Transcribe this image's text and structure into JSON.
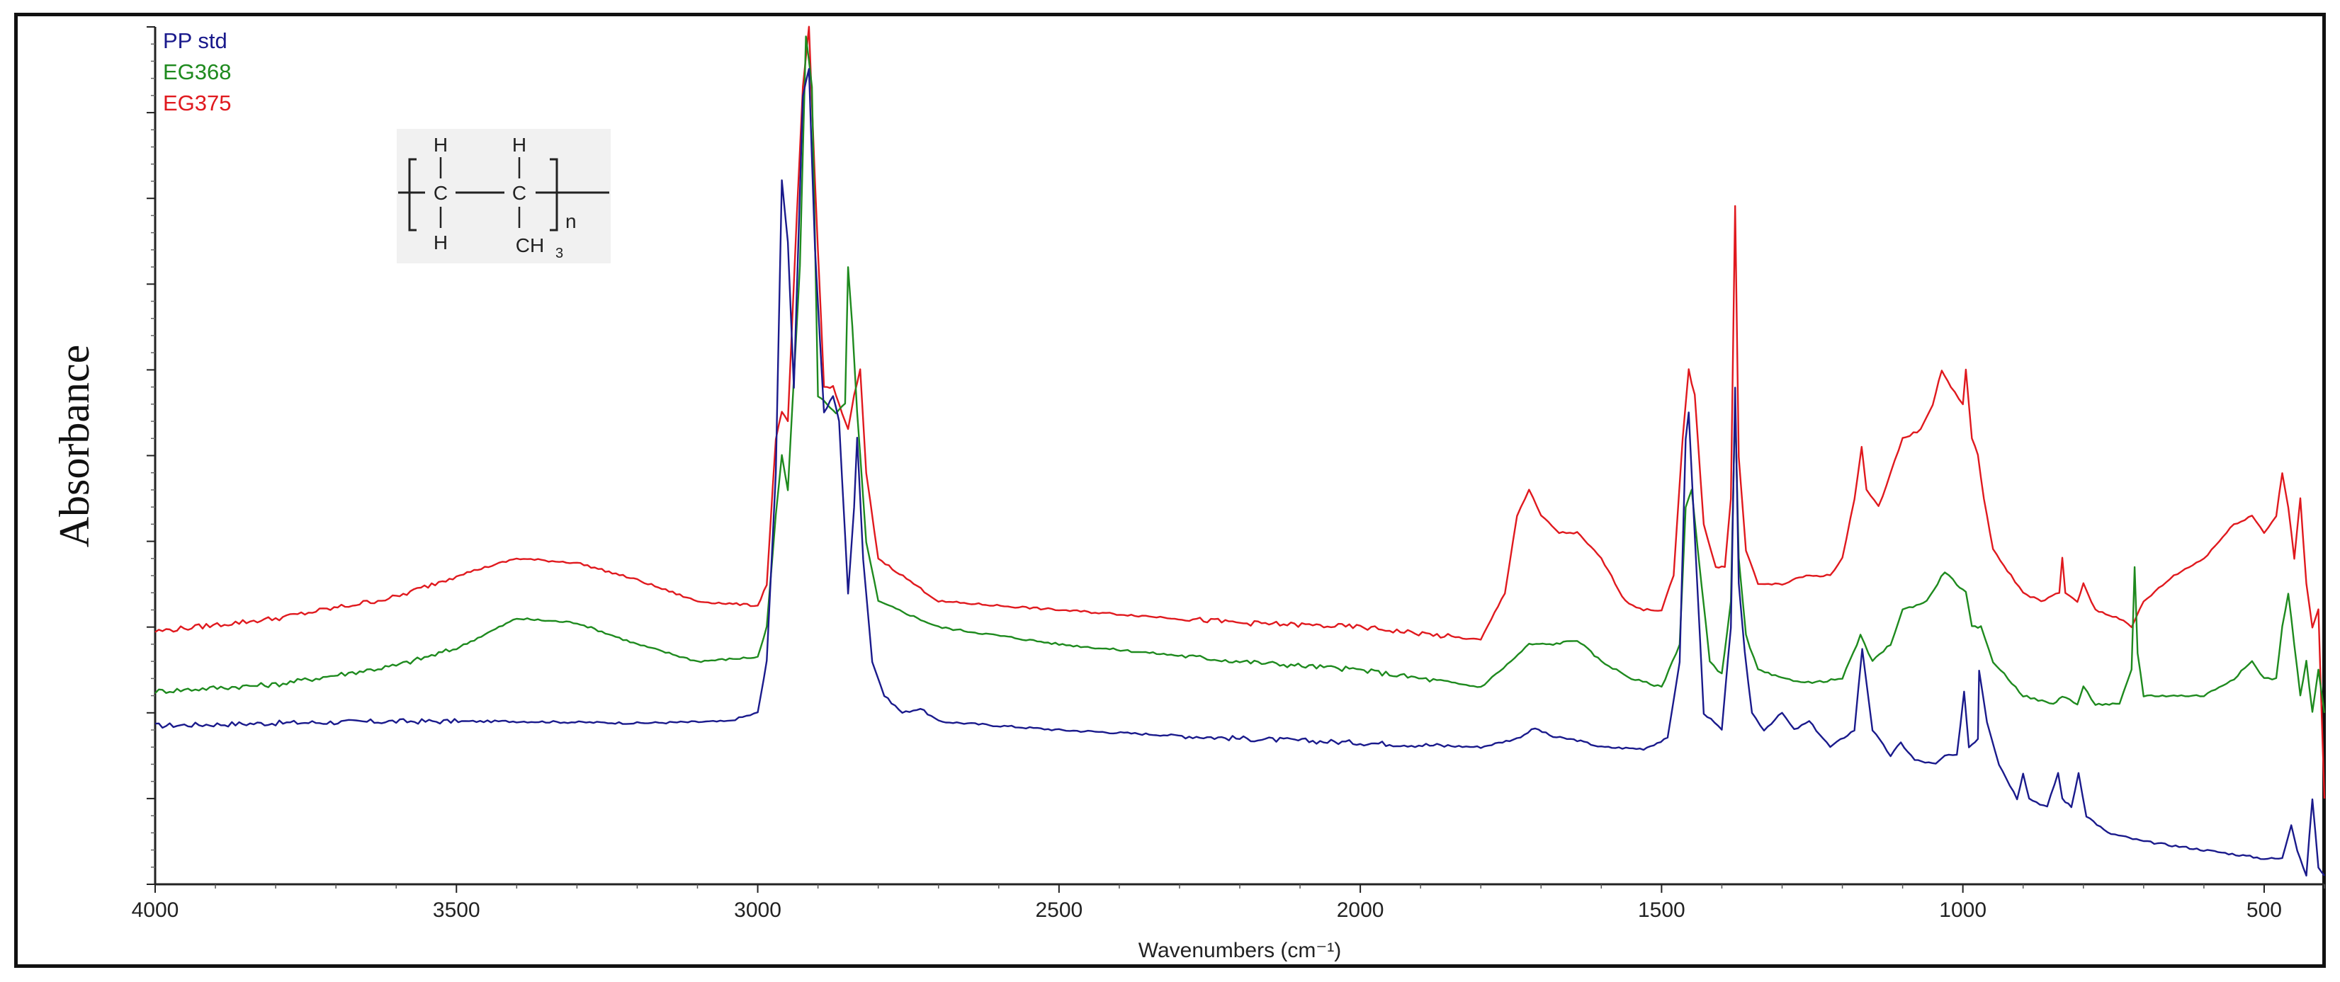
{
  "chart_data": {
    "type": "line",
    "title": "",
    "xlabel": "Wavenumbers (cm⁻¹)",
    "ylabel": "Absorbance",
    "xlim": [
      4000,
      400
    ],
    "x_reversed": true,
    "ylim": [
      0,
      1.0
    ],
    "y_tick_labels_shown": false,
    "x_ticks": [
      4000,
      3500,
      3000,
      2500,
      2000,
      1500,
      1000,
      500
    ],
    "x_tick_labels": [
      "4000",
      "3500",
      "3000",
      "2500",
      "2000",
      "1500",
      "1000",
      "500"
    ],
    "grid": false,
    "legend_position": "top-left",
    "series": [
      {
        "name": "PP std",
        "color": "#1a1a8c",
        "points": [
          [
            4000,
            0.185
          ],
          [
            3800,
            0.188
          ],
          [
            3600,
            0.19
          ],
          [
            3400,
            0.19
          ],
          [
            3200,
            0.188
          ],
          [
            3050,
            0.19
          ],
          [
            3000,
            0.2
          ],
          [
            2985,
            0.26
          ],
          [
            2970,
            0.48
          ],
          [
            2960,
            0.82
          ],
          [
            2950,
            0.75
          ],
          [
            2940,
            0.58
          ],
          [
            2925,
            0.92
          ],
          [
            2915,
            0.95
          ],
          [
            2905,
            0.74
          ],
          [
            2890,
            0.55
          ],
          [
            2875,
            0.57
          ],
          [
            2865,
            0.54
          ],
          [
            2850,
            0.34
          ],
          [
            2840,
            0.44
          ],
          [
            2835,
            0.52
          ],
          [
            2825,
            0.38
          ],
          [
            2810,
            0.26
          ],
          [
            2790,
            0.22
          ],
          [
            2760,
            0.2
          ],
          [
            2730,
            0.205
          ],
          [
            2700,
            0.19
          ],
          [
            2500,
            0.18
          ],
          [
            2200,
            0.17
          ],
          [
            2000,
            0.165
          ],
          [
            1800,
            0.16
          ],
          [
            1740,
            0.17
          ],
          [
            1710,
            0.182
          ],
          [
            1680,
            0.172
          ],
          [
            1640,
            0.168
          ],
          [
            1600,
            0.16
          ],
          [
            1530,
            0.158
          ],
          [
            1490,
            0.17
          ],
          [
            1470,
            0.26
          ],
          [
            1460,
            0.52
          ],
          [
            1455,
            0.55
          ],
          [
            1448,
            0.45
          ],
          [
            1430,
            0.2
          ],
          [
            1400,
            0.18
          ],
          [
            1385,
            0.3
          ],
          [
            1378,
            0.58
          ],
          [
            1372,
            0.35
          ],
          [
            1362,
            0.27
          ],
          [
            1350,
            0.2
          ],
          [
            1330,
            0.18
          ],
          [
            1300,
            0.2
          ],
          [
            1280,
            0.18
          ],
          [
            1255,
            0.19
          ],
          [
            1220,
            0.16
          ],
          [
            1180,
            0.18
          ],
          [
            1167,
            0.275
          ],
          [
            1150,
            0.18
          ],
          [
            1120,
            0.15
          ],
          [
            1103,
            0.165
          ],
          [
            1080,
            0.145
          ],
          [
            1045,
            0.14
          ],
          [
            1030,
            0.15
          ],
          [
            1010,
            0.15
          ],
          [
            998,
            0.225
          ],
          [
            990,
            0.16
          ],
          [
            975,
            0.17
          ],
          [
            973,
            0.25
          ],
          [
            960,
            0.19
          ],
          [
            940,
            0.14
          ],
          [
            910,
            0.1
          ],
          [
            900,
            0.13
          ],
          [
            890,
            0.1
          ],
          [
            860,
            0.09
          ],
          [
            842,
            0.13
          ],
          [
            835,
            0.1
          ],
          [
            820,
            0.09
          ],
          [
            808,
            0.13
          ],
          [
            795,
            0.08
          ],
          [
            760,
            0.06
          ],
          [
            700,
            0.05
          ],
          [
            600,
            0.04
          ],
          [
            500,
            0.03
          ],
          [
            470,
            0.03
          ],
          [
            455,
            0.07
          ],
          [
            445,
            0.04
          ],
          [
            430,
            0.01
          ],
          [
            420,
            0.1
          ],
          [
            410,
            0.02
          ],
          [
            400,
            0.01
          ]
        ]
      },
      {
        "name": "EG368",
        "color": "#1e8a1e",
        "points": [
          [
            4000,
            0.225
          ],
          [
            3800,
            0.233
          ],
          [
            3600,
            0.255
          ],
          [
            3500,
            0.275
          ],
          [
            3400,
            0.31
          ],
          [
            3300,
            0.305
          ],
          [
            3200,
            0.28
          ],
          [
            3100,
            0.26
          ],
          [
            3000,
            0.265
          ],
          [
            2985,
            0.3
          ],
          [
            2970,
            0.43
          ],
          [
            2960,
            0.5
          ],
          [
            2950,
            0.46
          ],
          [
            2930,
            0.72
          ],
          [
            2920,
            0.99
          ],
          [
            2910,
            0.93
          ],
          [
            2900,
            0.57
          ],
          [
            2885,
            0.56
          ],
          [
            2870,
            0.55
          ],
          [
            2855,
            0.56
          ],
          [
            2850,
            0.72
          ],
          [
            2843,
            0.65
          ],
          [
            2835,
            0.55
          ],
          [
            2820,
            0.4
          ],
          [
            2800,
            0.33
          ],
          [
            2700,
            0.3
          ],
          [
            2500,
            0.28
          ],
          [
            2200,
            0.26
          ],
          [
            2000,
            0.25
          ],
          [
            1800,
            0.23
          ],
          [
            1750,
            0.26
          ],
          [
            1720,
            0.28
          ],
          [
            1680,
            0.28
          ],
          [
            1640,
            0.285
          ],
          [
            1600,
            0.26
          ],
          [
            1550,
            0.24
          ],
          [
            1500,
            0.23
          ],
          [
            1470,
            0.28
          ],
          [
            1460,
            0.44
          ],
          [
            1450,
            0.46
          ],
          [
            1440,
            0.39
          ],
          [
            1420,
            0.26
          ],
          [
            1400,
            0.245
          ],
          [
            1385,
            0.33
          ],
          [
            1378,
            0.56
          ],
          [
            1372,
            0.38
          ],
          [
            1360,
            0.29
          ],
          [
            1340,
            0.25
          ],
          [
            1300,
            0.24
          ],
          [
            1250,
            0.235
          ],
          [
            1200,
            0.24
          ],
          [
            1170,
            0.29
          ],
          [
            1150,
            0.26
          ],
          [
            1120,
            0.28
          ],
          [
            1100,
            0.32
          ],
          [
            1060,
            0.33
          ],
          [
            1030,
            0.365
          ],
          [
            1010,
            0.35
          ],
          [
            995,
            0.34
          ],
          [
            985,
            0.3
          ],
          [
            970,
            0.3
          ],
          [
            950,
            0.26
          ],
          [
            900,
            0.22
          ],
          [
            850,
            0.21
          ],
          [
            835,
            0.22
          ],
          [
            810,
            0.21
          ],
          [
            800,
            0.23
          ],
          [
            780,
            0.21
          ],
          [
            740,
            0.21
          ],
          [
            720,
            0.25
          ],
          [
            715,
            0.37
          ],
          [
            710,
            0.27
          ],
          [
            700,
            0.22
          ],
          [
            650,
            0.22
          ],
          [
            600,
            0.22
          ],
          [
            550,
            0.24
          ],
          [
            520,
            0.26
          ],
          [
            500,
            0.24
          ],
          [
            480,
            0.24
          ],
          [
            470,
            0.3
          ],
          [
            460,
            0.34
          ],
          [
            450,
            0.28
          ],
          [
            440,
            0.22
          ],
          [
            430,
            0.26
          ],
          [
            420,
            0.2
          ],
          [
            410,
            0.25
          ],
          [
            400,
            0.2
          ]
        ]
      },
      {
        "name": "EG375",
        "color": "#e0191e",
        "points": [
          [
            4000,
            0.295
          ],
          [
            3800,
            0.31
          ],
          [
            3600,
            0.335
          ],
          [
            3500,
            0.36
          ],
          [
            3400,
            0.38
          ],
          [
            3300,
            0.375
          ],
          [
            3200,
            0.355
          ],
          [
            3100,
            0.33
          ],
          [
            3000,
            0.325
          ],
          [
            2985,
            0.35
          ],
          [
            2970,
            0.52
          ],
          [
            2960,
            0.55
          ],
          [
            2950,
            0.54
          ],
          [
            2935,
            0.78
          ],
          [
            2925,
            0.93
          ],
          [
            2915,
            1.0
          ],
          [
            2905,
            0.82
          ],
          [
            2890,
            0.58
          ],
          [
            2875,
            0.58
          ],
          [
            2860,
            0.55
          ],
          [
            2850,
            0.53
          ],
          [
            2840,
            0.57
          ],
          [
            2830,
            0.6
          ],
          [
            2820,
            0.48
          ],
          [
            2800,
            0.38
          ],
          [
            2700,
            0.33
          ],
          [
            2500,
            0.32
          ],
          [
            2200,
            0.305
          ],
          [
            2000,
            0.3
          ],
          [
            1800,
            0.285
          ],
          [
            1760,
            0.34
          ],
          [
            1740,
            0.43
          ],
          [
            1720,
            0.46
          ],
          [
            1700,
            0.43
          ],
          [
            1670,
            0.41
          ],
          [
            1640,
            0.41
          ],
          [
            1600,
            0.38
          ],
          [
            1560,
            0.33
          ],
          [
            1530,
            0.32
          ],
          [
            1500,
            0.32
          ],
          [
            1480,
            0.36
          ],
          [
            1465,
            0.52
          ],
          [
            1455,
            0.6
          ],
          [
            1445,
            0.57
          ],
          [
            1430,
            0.42
          ],
          [
            1410,
            0.37
          ],
          [
            1395,
            0.37
          ],
          [
            1385,
            0.45
          ],
          [
            1378,
            0.79
          ],
          [
            1372,
            0.5
          ],
          [
            1360,
            0.39
          ],
          [
            1340,
            0.35
          ],
          [
            1300,
            0.35
          ],
          [
            1260,
            0.36
          ],
          [
            1220,
            0.36
          ],
          [
            1200,
            0.38
          ],
          [
            1180,
            0.45
          ],
          [
            1168,
            0.51
          ],
          [
            1160,
            0.46
          ],
          [
            1140,
            0.44
          ],
          [
            1120,
            0.48
          ],
          [
            1100,
            0.52
          ],
          [
            1070,
            0.53
          ],
          [
            1050,
            0.56
          ],
          [
            1035,
            0.6
          ],
          [
            1020,
            0.58
          ],
          [
            1000,
            0.56
          ],
          [
            995,
            0.6
          ],
          [
            985,
            0.52
          ],
          [
            975,
            0.5
          ],
          [
            965,
            0.45
          ],
          [
            950,
            0.39
          ],
          [
            920,
            0.36
          ],
          [
            900,
            0.34
          ],
          [
            870,
            0.33
          ],
          [
            840,
            0.34
          ],
          [
            835,
            0.38
          ],
          [
            830,
            0.34
          ],
          [
            810,
            0.33
          ],
          [
            800,
            0.35
          ],
          [
            780,
            0.32
          ],
          [
            740,
            0.31
          ],
          [
            720,
            0.3
          ],
          [
            700,
            0.33
          ],
          [
            650,
            0.36
          ],
          [
            600,
            0.38
          ],
          [
            550,
            0.42
          ],
          [
            520,
            0.43
          ],
          [
            500,
            0.41
          ],
          [
            480,
            0.43
          ],
          [
            470,
            0.48
          ],
          [
            460,
            0.44
          ],
          [
            450,
            0.38
          ],
          [
            440,
            0.45
          ],
          [
            430,
            0.35
          ],
          [
            420,
            0.3
          ],
          [
            410,
            0.32
          ],
          [
            400,
            0.1
          ]
        ]
      }
    ]
  },
  "legend": {
    "items": [
      {
        "label": "PP std",
        "color": "#1a1a8c"
      },
      {
        "label": "EG368",
        "color": "#1e8a1e"
      },
      {
        "label": "EG375",
        "color": "#e0191e"
      }
    ]
  },
  "structure": {
    "h": "H",
    "c": "C",
    "ch3": "CH",
    "ch3_sub": "3",
    "n": "n"
  }
}
